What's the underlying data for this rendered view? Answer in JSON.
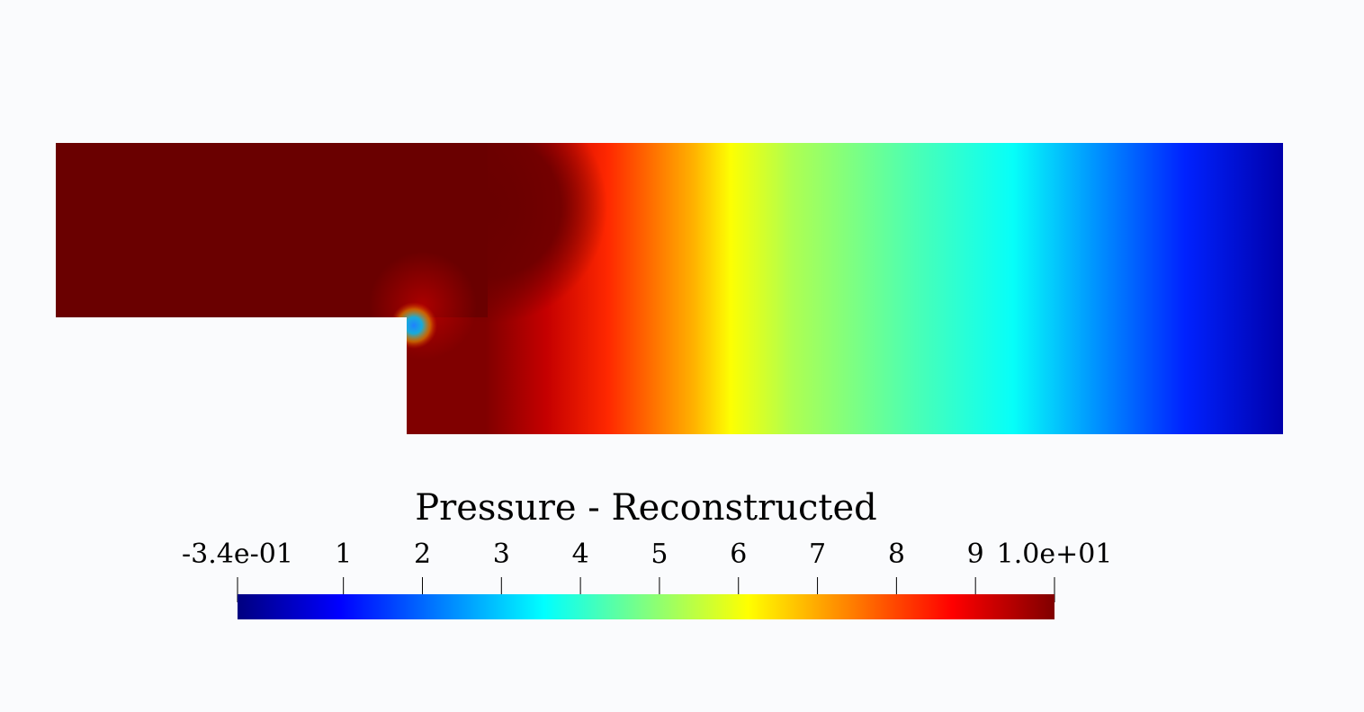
{
  "chart_data": {
    "type": "heatmap",
    "title": "Pressure - Reconstructed",
    "field": "Pressure - Reconstructed",
    "colormap": "jet",
    "range": [
      -0.34,
      10.0
    ],
    "colorbar": {
      "ticks": [
        {
          "value": -0.34,
          "label": "-3.4e-01"
        },
        {
          "value": 1,
          "label": "1"
        },
        {
          "value": 2,
          "label": "2"
        },
        {
          "value": 3,
          "label": "3"
        },
        {
          "value": 4,
          "label": "4"
        },
        {
          "value": 5,
          "label": "5"
        },
        {
          "value": 6,
          "label": "6"
        },
        {
          "value": 7,
          "label": "7"
        },
        {
          "value": 8,
          "label": "8"
        },
        {
          "value": 9,
          "label": "9"
        },
        {
          "value": 10.0,
          "label": "1.0e+01"
        }
      ],
      "orientation": "horizontal",
      "placement": "bottom-center"
    },
    "field_profile": [
      {
        "x": 0.0,
        "value": 10.0
      },
      {
        "x": 0.35,
        "value": 10.0
      },
      {
        "x": 0.4,
        "value": 9.3
      },
      {
        "x": 0.45,
        "value": 8.3
      },
      {
        "x": 0.5,
        "value": 7.3
      },
      {
        "x": 0.52,
        "value": 6.9
      },
      {
        "x": 0.55,
        "value": 6.1
      },
      {
        "x": 0.6,
        "value": 5.3
      },
      {
        "x": 0.7,
        "value": 4.3
      },
      {
        "x": 0.78,
        "value": 3.6
      },
      {
        "x": 0.85,
        "value": 2.4
      },
      {
        "x": 0.92,
        "value": 1.3
      },
      {
        "x": 1.0,
        "value": 0.1
      }
    ],
    "geometry": "backward-facing step channel",
    "grid": false
  }
}
